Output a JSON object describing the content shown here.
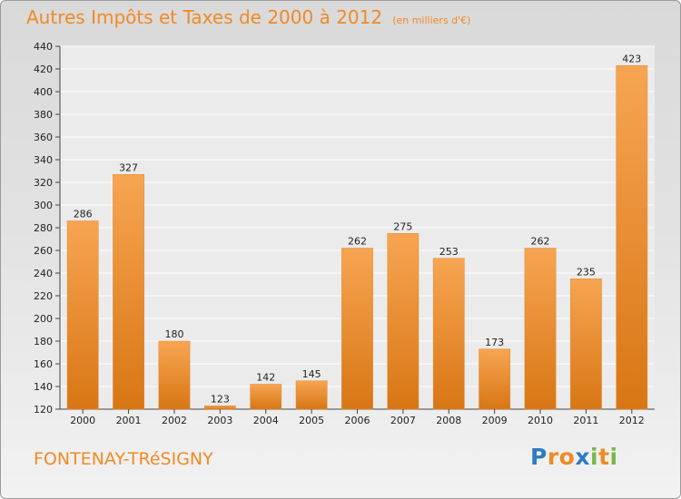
{
  "chart_data": {
    "type": "bar",
    "title": "Autres Impôts et Taxes de 2000 à 2012",
    "subtitle": "(en milliers d'€)",
    "categories": [
      "2000",
      "2001",
      "2002",
      "2003",
      "2004",
      "2005",
      "2006",
      "2007",
      "2008",
      "2009",
      "2010",
      "2011",
      "2012"
    ],
    "values": [
      286,
      327,
      180,
      123,
      142,
      145,
      262,
      275,
      253,
      173,
      262,
      235,
      423
    ],
    "ylim": [
      120,
      440
    ],
    "yticks": [
      120,
      140,
      160,
      180,
      200,
      220,
      240,
      260,
      280,
      300,
      320,
      340,
      360,
      380,
      400,
      420,
      440
    ],
    "grid": true,
    "bar_color": "#f08a24"
  },
  "commune": "FONTENAY-TRéSIGNY",
  "logo": {
    "text": "Proxiti",
    "letters": [
      "P",
      "r",
      "o",
      "x",
      "i",
      "t",
      "i"
    ],
    "colors": [
      "#2e7bc4",
      "#f08a24",
      "#f08a24",
      "#2e7bc4",
      "#7ab648",
      "#f08a24",
      "#7ab648"
    ]
  }
}
